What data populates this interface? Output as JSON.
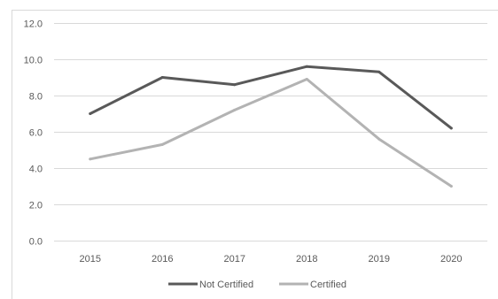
{
  "chart_data": {
    "type": "line",
    "title": "",
    "xlabel": "",
    "ylabel": "",
    "categories": [
      "2015",
      "2016",
      "2017",
      "2018",
      "2019",
      "2020"
    ],
    "y_ticks": [
      "0.0",
      "2.0",
      "4.0",
      "6.0",
      "8.0",
      "10.0",
      "12.0"
    ],
    "ylim": [
      0,
      12
    ],
    "grid": true,
    "legend_position": "bottom",
    "series": [
      {
        "name": "Not Certified",
        "color": "#595959",
        "values": [
          7.0,
          9.0,
          8.6,
          9.6,
          9.3,
          6.2
        ]
      },
      {
        "name": "Certified",
        "color": "#b3b3b3",
        "values": [
          4.5,
          5.3,
          7.2,
          8.9,
          5.6,
          3.0
        ]
      }
    ]
  }
}
